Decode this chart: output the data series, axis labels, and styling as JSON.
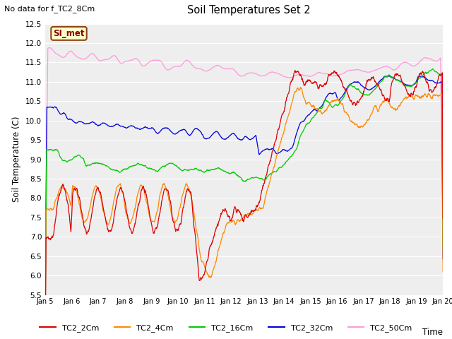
{
  "title": "Soil Temperatures Set 2",
  "subtitle": "No data for f_TC2_8Cm",
  "xlabel": "Time",
  "ylabel": "Soil Temperature (C)",
  "ylim": [
    5.5,
    12.5
  ],
  "legend_label": "SI_met",
  "legend_bg": "#ffffcc",
  "legend_border": "#8B0000",
  "series_colors": {
    "TC2_2Cm": "#dd0000",
    "TC2_4Cm": "#ff8800",
    "TC2_16Cm": "#00cc00",
    "TC2_32Cm": "#0000dd",
    "TC2_50Cm": "#ff99dd"
  },
  "fig_bg": "#ffffff",
  "plot_bg": "#eeeeee",
  "grid_color": "#ffffff",
  "xticklabels": [
    "Jan 5",
    "Jan 6",
    "Jan 7",
    "Jan 8",
    "Jan 9",
    "Jan 10",
    "Jan 11",
    "Jan 12",
    "Jan 13",
    "Jan 14",
    "Jan 15",
    "Jan 16",
    "Jan 17",
    "Jan 18",
    "Jan 19",
    "Jan 20"
  ],
  "n_points": 1500
}
